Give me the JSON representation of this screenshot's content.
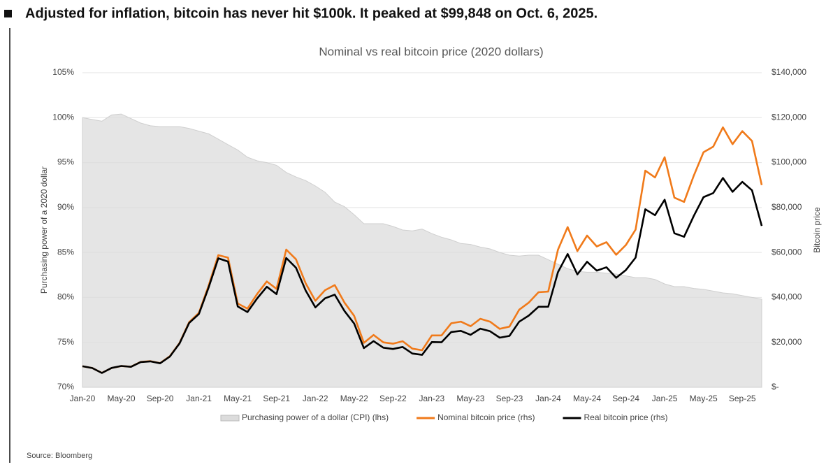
{
  "chart_data": {
    "type": "line",
    "heading": "Adjusted for inflation, bitcoin has never hit $100k. It peaked at $99,848 on Oct. 6, 2025.",
    "title": "Nominal vs real bitcoin price (2020 dollars)",
    "ylabel": "Purchasing power of a 2020 dollar",
    "y2label": "Bitcoin price",
    "source": "Source: Bloomberg",
    "categories": [
      "Jan-20",
      null,
      null,
      null,
      "May-20",
      null,
      null,
      null,
      "Sep-20",
      null,
      null,
      null,
      "Jan-21",
      null,
      null,
      null,
      "May-21",
      null,
      null,
      null,
      "Sep-21",
      null,
      null,
      null,
      "Jan-22",
      null,
      null,
      null,
      "May-22",
      null,
      null,
      null,
      "Sep-22",
      null,
      null,
      null,
      "Jan-23",
      null,
      null,
      null,
      "May-23",
      null,
      null,
      null,
      "Sep-23",
      null,
      null,
      null,
      "Jan-24",
      null,
      null,
      null,
      "May-24",
      null,
      null,
      null,
      "Sep-24",
      null,
      null,
      null,
      "Jan-25",
      null,
      null,
      null,
      "May-25",
      null,
      null,
      null,
      "Sep-25",
      null,
      null
    ],
    "ylim": [
      70,
      105
    ],
    "yticks": [
      {
        "value": 70,
        "label": "70%"
      },
      {
        "value": 75,
        "label": "75%"
      },
      {
        "value": 80,
        "label": "80%"
      },
      {
        "value": 85,
        "label": "85%"
      },
      {
        "value": 90,
        "label": "90%"
      },
      {
        "value": 95,
        "label": "95%"
      },
      {
        "value": 100,
        "label": "100%"
      },
      {
        "value": 105,
        "label": "105%"
      }
    ],
    "y2lim": [
      0,
      140000
    ],
    "y2ticks": [
      {
        "value": 0,
        "label": "$-"
      },
      {
        "value": 20000,
        "label": "$20,000"
      },
      {
        "value": 40000,
        "label": "$40,000"
      },
      {
        "value": 60000,
        "label": "$60,000"
      },
      {
        "value": 80000,
        "label": "$80,000"
      },
      {
        "value": 100000,
        "label": "$100,000"
      },
      {
        "value": 120000,
        "label": "$120,000"
      },
      {
        "value": 140000,
        "label": "$140,000"
      }
    ],
    "grid": true,
    "legend": "bottom",
    "series": [
      {
        "name": "Purchasing power of a dollar (CPI) (lhs)",
        "color": "#dcdcdc",
        "axis": "y",
        "style": "area",
        "values": [
          100.0,
          99.8,
          99.6,
          100.3,
          100.4,
          99.9,
          99.4,
          99.1,
          99.0,
          99.0,
          99.0,
          98.8,
          98.5,
          98.2,
          97.6,
          97.0,
          96.4,
          95.6,
          95.2,
          95.0,
          94.7,
          93.9,
          93.4,
          93.0,
          92.4,
          91.7,
          90.6,
          90.1,
          89.2,
          88.2,
          88.2,
          88.2,
          87.9,
          87.5,
          87.4,
          87.6,
          87.1,
          86.7,
          86.4,
          86.0,
          85.9,
          85.6,
          85.4,
          85.0,
          84.7,
          84.6,
          84.7,
          84.7,
          84.2,
          83.7,
          83.2,
          82.9,
          82.8,
          82.8,
          82.7,
          82.6,
          82.4,
          82.2,
          82.2,
          82.0,
          81.5,
          81.2,
          81.2,
          81.0,
          80.9,
          80.7,
          80.5,
          80.4,
          80.2,
          80.0,
          79.8
        ]
      },
      {
        "name": "Nominal bitcoin price (rhs)",
        "color": "#f07a1a",
        "axis": "y2",
        "values": [
          9350,
          8600,
          6400,
          8600,
          9450,
          9140,
          11300,
          11650,
          10780,
          13800,
          19700,
          29000,
          33100,
          45200,
          58800,
          57700,
          37300,
          35000,
          41500,
          47100,
          43800,
          61300,
          57000,
          46300,
          38500,
          43200,
          45500,
          37700,
          31800,
          19800,
          23300,
          20000,
          19400,
          20500,
          17200,
          16500,
          23100,
          23100,
          28500,
          29200,
          27200,
          30500,
          29200,
          26000,
          27000,
          34500,
          37700,
          42300,
          42600,
          61200,
          71300,
          60600,
          67500,
          62700,
          64600,
          59000,
          63300,
          70200,
          96400,
          93400,
          102400,
          84400,
          82500,
          94200,
          104600,
          107100,
          115700,
          108200,
          114000,
          109600,
          90000
        ]
      },
      {
        "name": "Real bitcoin price (rhs)",
        "color": "#000000",
        "axis": "y2",
        "values": [
          9350,
          8580,
          6370,
          8630,
          9490,
          9130,
          11230,
          11540,
          10670,
          13660,
          19500,
          28650,
          32600,
          44390,
          57390,
          55970,
          35960,
          33460,
          39510,
          44750,
          41480,
          57560,
          53240,
          43060,
          35570,
          39610,
          41220,
          33970,
          28370,
          17460,
          20550,
          17640,
          17050,
          17940,
          15030,
          14450,
          20120,
          20030,
          24620,
          25110,
          23360,
          26110,
          24940,
          22100,
          22870,
          29190,
          31930,
          35830,
          35870,
          51220,
          59320,
          50240,
          55890,
          51920,
          53420,
          48730,
          52160,
          57700,
          79240,
          76590,
          83460,
          68530,
          66990,
          76300,
          84620,
          86430,
          93140,
          86990,
          91430,
          87680,
          71820
        ]
      }
    ]
  }
}
